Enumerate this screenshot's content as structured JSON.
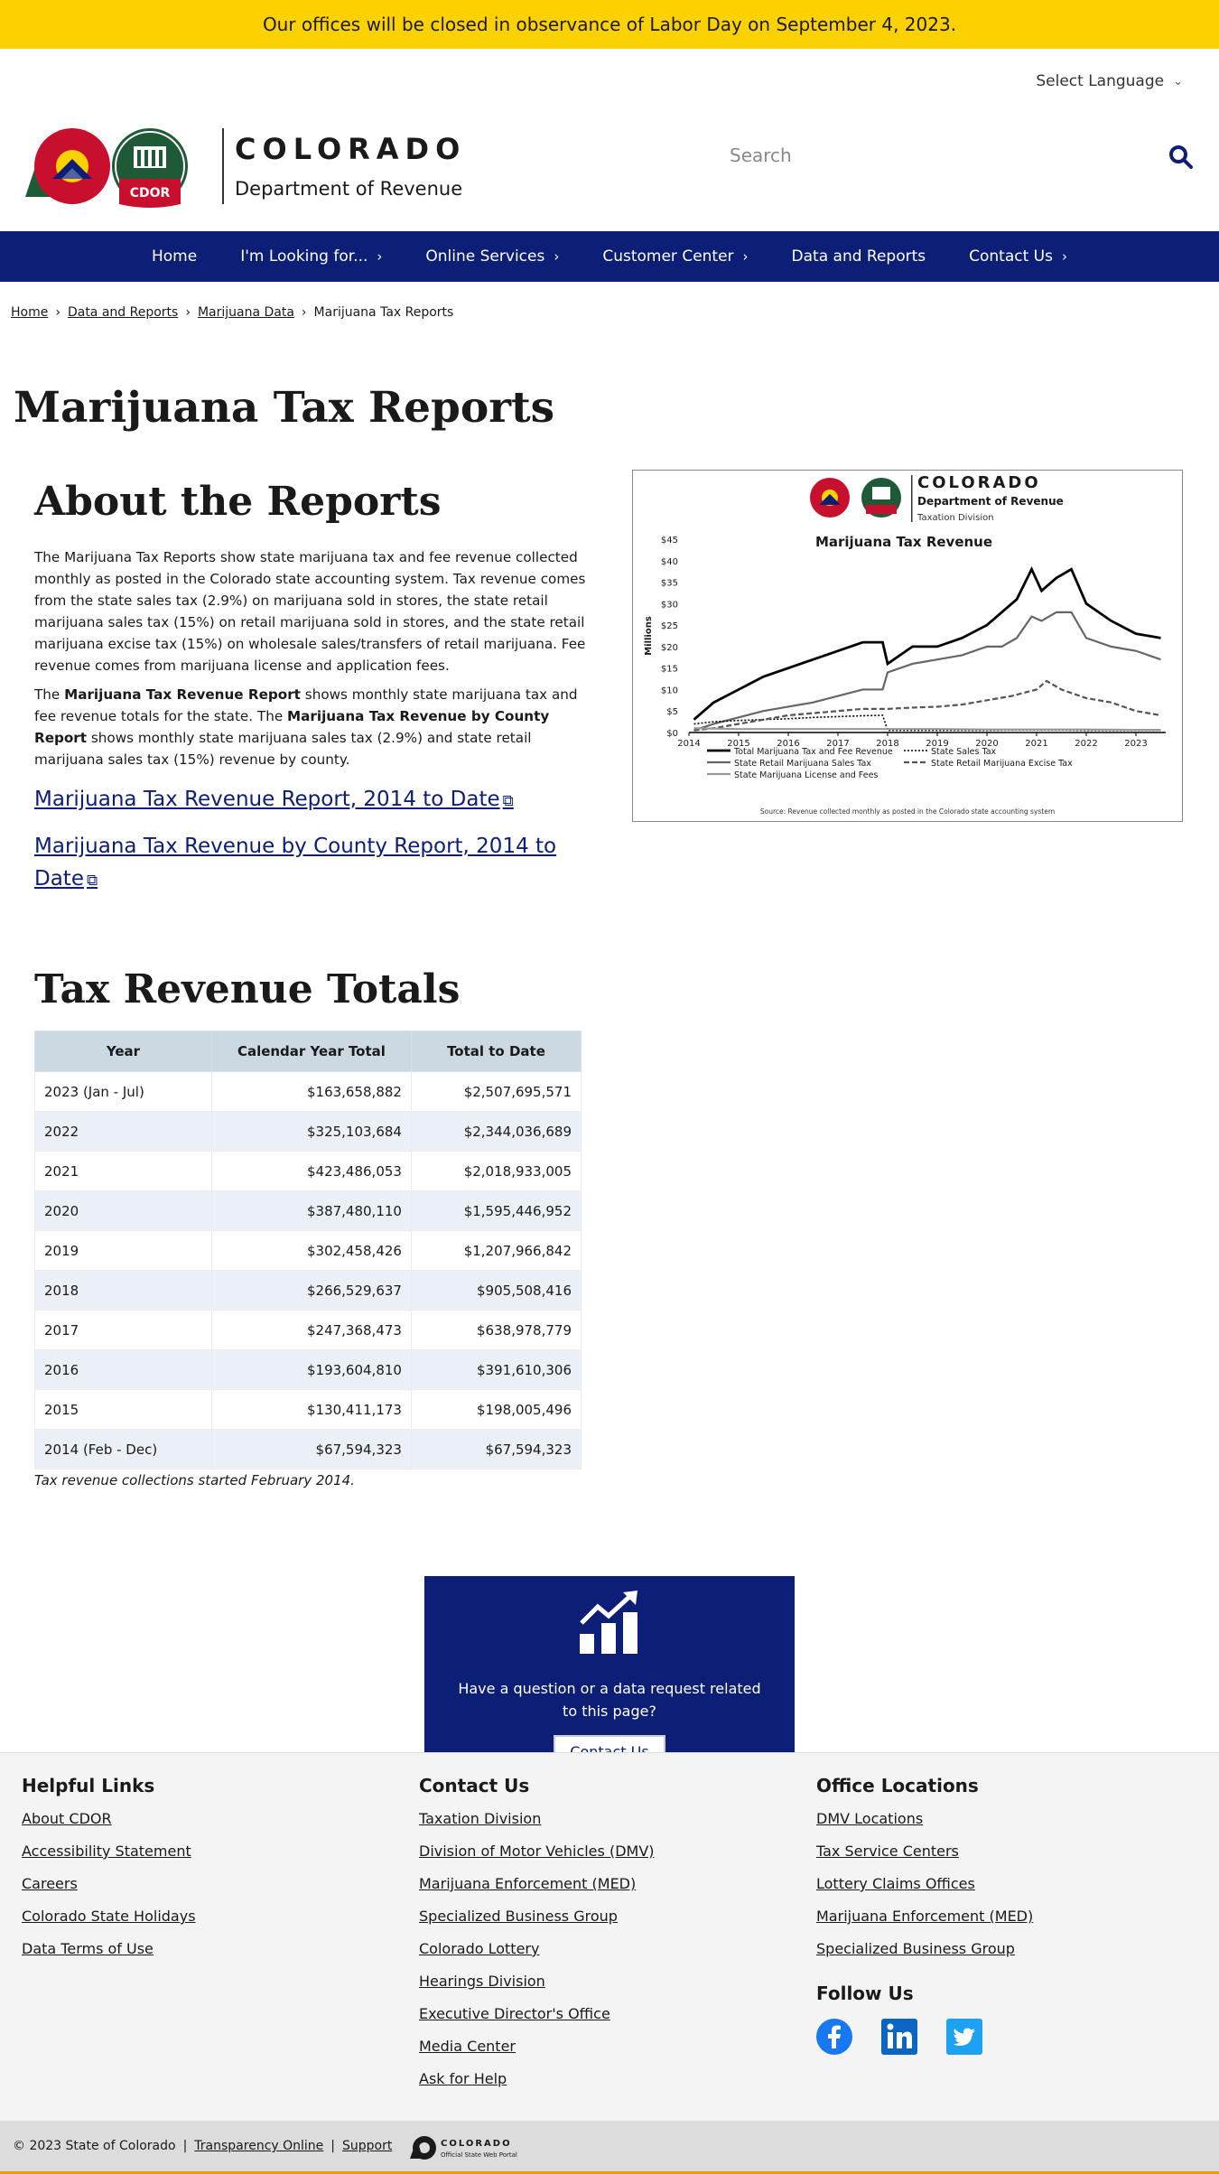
{
  "alert": {
    "text": "Our offices will be closed in observance of Labor Day on September 4, 2023."
  },
  "language": {
    "label": "Select Language"
  },
  "logo": {
    "state": "COLORADO",
    "dept": "Department of Revenue",
    "badge": "CDOR"
  },
  "search": {
    "placeholder": "Search"
  },
  "nav": [
    "Home",
    "I'm Looking for...",
    "Online Services",
    "Customer Center",
    "Data and Reports",
    "Contact Us"
  ],
  "nav_has_caret": [
    false,
    true,
    true,
    true,
    false,
    true
  ],
  "breadcrumb": {
    "items": [
      "Home",
      "Data and Reports",
      "Marijuana Data"
    ],
    "current": "Marijuana Tax Reports"
  },
  "page_title": "Marijuana Tax Reports",
  "about": {
    "heading": "About the Reports",
    "p1": "The Marijuana Tax Reports show state marijuana tax and fee revenue collected monthly as posted in the Colorado state accounting system. Tax revenue comes from the state sales tax (2.9%) on marijuana sold in stores, the state retail marijuana sales tax (15%) on retail marijuana sold in stores, and the state retail marijuana excise tax (15%) on wholesale sales/transfers of retail marijuana. Fee revenue comes from marijuana license and application fees.",
    "p2_a": "The ",
    "p2_b1": "Marijuana Tax Revenue Report",
    "p2_c": " shows monthly state marijuana tax and fee revenue totals for the state. The ",
    "p2_b2": "Marijuana Tax Revenue by County Report",
    "p2_d": " shows monthly state marijuana sales tax (2.9%) and state retail marijuana sales tax (15%) revenue by county.",
    "link1": "Marijuana Tax Revenue Report, 2014 to Date",
    "link2": "Marijuana Tax Revenue by County Report, 2014 to Date"
  },
  "chart_header": {
    "state": "COLORADO",
    "dept": "Department of Revenue",
    "division": "Taxation Division"
  },
  "chart_data": {
    "type": "line",
    "title": "Marijuana Tax Revenue",
    "ylabel": "Millions",
    "xlabel": "",
    "x_ticks": [
      "2014",
      "2015",
      "2016",
      "2017",
      "2018",
      "2019",
      "2020",
      "2021",
      "2022",
      "2023"
    ],
    "y_ticks": [
      "$0",
      "$5",
      "$10",
      "$15",
      "$20",
      "$25",
      "$30",
      "$35",
      "$40",
      "$45"
    ],
    "ylim": [
      0,
      45
    ],
    "xlim": [
      2014,
      2023.6
    ],
    "source": "Source: Revenue collected monthly as posted in the Colorado state accounting system",
    "series": [
      {
        "name": "Total Marijuana Tax and Fee Revenue",
        "color": "#000000",
        "style": "solid-bold",
        "x": [
          2014.1,
          2014.5,
          2015.0,
          2015.5,
          2016.0,
          2016.5,
          2017.0,
          2017.5,
          2017.9,
          2018.0,
          2018.5,
          2019.0,
          2019.5,
          2020.0,
          2020.3,
          2020.6,
          2020.9,
          2021.1,
          2021.4,
          2021.7,
          2022.0,
          2022.5,
          2023.0,
          2023.5
        ],
        "y": [
          3,
          7,
          10,
          13,
          15,
          17,
          19,
          21,
          21,
          16,
          20,
          20,
          22,
          25,
          28,
          31,
          38,
          33,
          36,
          38,
          30,
          26,
          23,
          22
        ]
      },
      {
        "name": "State Retail Marijuana Sales Tax",
        "color": "#666666",
        "style": "solid",
        "x": [
          2014.1,
          2014.5,
          2015.0,
          2015.5,
          2016.0,
          2016.5,
          2017.0,
          2017.5,
          2017.9,
          2018.0,
          2018.5,
          2019.0,
          2019.5,
          2020.0,
          2020.3,
          2020.6,
          2020.9,
          2021.1,
          2021.4,
          2021.7,
          2022.0,
          2022.5,
          2023.0,
          2023.5
        ],
        "y": [
          0.5,
          2,
          3.5,
          5,
          6,
          7,
          8.5,
          10,
          10,
          14,
          16,
          17,
          18,
          20,
          20,
          22,
          27,
          26,
          28,
          28,
          22,
          20,
          19,
          17
        ]
      },
      {
        "name": "State Sales Tax",
        "color": "#000000",
        "style": "dotted",
        "x": [
          2014.1,
          2014.5,
          2015.0,
          2015.5,
          2016.0,
          2016.5,
          2017.0,
          2017.5,
          2017.9,
          2018.0,
          2018.5,
          2019.0,
          2019.5,
          2020.0,
          2020.5,
          2021.0,
          2021.5,
          2022.0,
          2022.5,
          2023.0,
          2023.5
        ],
        "y": [
          2,
          2.5,
          2.8,
          3,
          3.2,
          3.5,
          3.7,
          3.9,
          4,
          0.5,
          0.5,
          0.5,
          0.5,
          0.5,
          0.6,
          0.6,
          0.6,
          0.5,
          0.5,
          0.5,
          0.5
        ]
      },
      {
        "name": "State Retail Marijuana Excise Tax",
        "color": "#555555",
        "style": "dashed",
        "x": [
          2014.1,
          2014.5,
          2015.0,
          2015.5,
          2016.0,
          2016.5,
          2017.0,
          2017.5,
          2018.0,
          2018.5,
          2019.0,
          2019.5,
          2020.0,
          2020.5,
          2021.0,
          2021.2,
          2021.5,
          2022.0,
          2022.5,
          2023.0,
          2023.5
        ],
        "y": [
          0.5,
          1,
          2,
          3,
          4,
          4.5,
          5,
          5.5,
          5.5,
          5.8,
          6,
          6.5,
          7.5,
          8.5,
          10,
          12,
          10,
          8,
          7,
          5,
          4
        ]
      },
      {
        "name": "State Marijuana License and Fees",
        "color": "#999999",
        "style": "solid",
        "x": [
          2014.1,
          2015.0,
          2016.0,
          2017.0,
          2018.0,
          2019.0,
          2020.0,
          2021.0,
          2022.0,
          2023.0,
          2023.5
        ],
        "y": [
          1,
          0.8,
          0.8,
          0.8,
          0.8,
          0.8,
          0.7,
          0.7,
          0.7,
          0.6,
          0.6
        ]
      }
    ]
  },
  "totals": {
    "heading": "Tax Revenue Totals",
    "columns": [
      "Year",
      "Calendar Year Total",
      "Total to Date"
    ],
    "rows": [
      [
        "2023 (Jan - Jul)",
        "$163,658,882",
        "$2,507,695,571"
      ],
      [
        "2022",
        "$325,103,684",
        "$2,344,036,689"
      ],
      [
        "2021",
        "$423,486,053",
        "$2,018,933,005"
      ],
      [
        "2020",
        "$387,480,110",
        "$1,595,446,952"
      ],
      [
        "2019",
        "$302,458,426",
        "$1,207,966,842"
      ],
      [
        "2018",
        "$266,529,637",
        "$905,508,416"
      ],
      [
        "2017",
        "$247,368,473",
        "$638,978,779"
      ],
      [
        "2016",
        "$193,604,810",
        "$391,610,306"
      ],
      [
        "2015",
        "$130,411,173",
        "$198,005,496"
      ],
      [
        "2014 (Feb - Dec)",
        "$67,594,323",
        "$67,594,323"
      ]
    ],
    "note": "Tax revenue collections started February 2014."
  },
  "cta": {
    "text": "Have a question or a data request related to this page?",
    "button": "Contact Us"
  },
  "footer": {
    "helpful": {
      "heading": "Helpful Links",
      "links": [
        "About CDOR",
        "Accessibility Statement",
        "Careers",
        "Colorado State Holidays",
        "Data Terms of Use"
      ]
    },
    "contact": {
      "heading": "Contact Us",
      "links": [
        "Taxation Division",
        "Division of Motor Vehicles (DMV)",
        "Marijuana Enforcement (MED)",
        "Specialized Business Group",
        "Colorado Lottery",
        "Hearings Division",
        "Executive Director's Office",
        "Media Center",
        "Ask for Help"
      ]
    },
    "offices": {
      "heading": "Office Locations",
      "links": [
        "DMV Locations",
        "Tax Service Centers",
        "Lottery Claims Offices",
        "Marijuana Enforcement (MED)",
        "Specialized Business Group"
      ]
    },
    "follow": {
      "heading": "Follow Us"
    }
  },
  "bottom": {
    "copyright": "© 2023 State of Colorado",
    "transparency": "Transparency Online",
    "support": "Support",
    "portal_name": "COLORADO",
    "portal_sub": "Official State Web Portal"
  },
  "colors": {
    "navy": "#0c1e75",
    "alert": "#fcd100",
    "facebook": "#1877f2",
    "linkedin": "#0a66c2",
    "twitter": "#1da1f2"
  }
}
